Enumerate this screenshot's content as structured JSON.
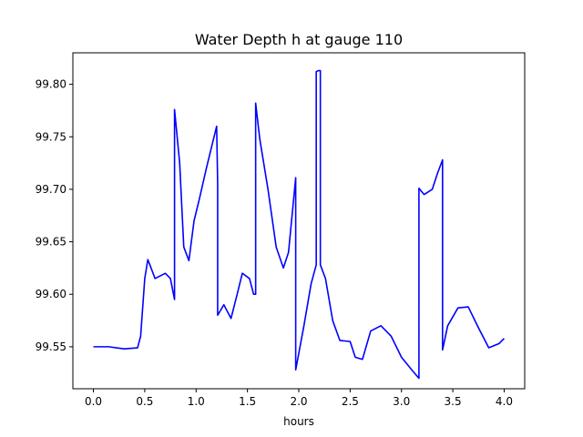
{
  "chart_data": {
    "type": "line",
    "title": "Water Depth h at gauge 110",
    "xlabel": "hours",
    "ylabel": "",
    "xlim": [
      -0.2,
      4.2
    ],
    "ylim": [
      99.51,
      99.83
    ],
    "grid": false,
    "legend": "none",
    "x_ticks": [
      0.0,
      0.5,
      1.0,
      1.5,
      2.0,
      2.5,
      3.0,
      3.5,
      4.0
    ],
    "x_tick_labels": [
      "0.0",
      "0.5",
      "1.0",
      "1.5",
      "2.0",
      "2.5",
      "3.0",
      "3.5",
      "4.0"
    ],
    "y_ticks": [
      99.55,
      99.6,
      99.65,
      99.7,
      99.75,
      99.8
    ],
    "y_tick_labels": [
      "99.55",
      "99.60",
      "99.65",
      "99.70",
      "99.75",
      "99.80"
    ],
    "series": [
      {
        "color": "#0000ff",
        "x": [
          0.0,
          0.15,
          0.3,
          0.43,
          0.46,
          0.5,
          0.53,
          0.55,
          0.6,
          0.7,
          0.75,
          0.79,
          0.79,
          0.84,
          0.88,
          0.93,
          0.98,
          1.03,
          1.1,
          1.2,
          1.21,
          1.21,
          1.27,
          1.34,
          1.4,
          1.45,
          1.52,
          1.56,
          1.58,
          1.58,
          1.62,
          1.7,
          1.78,
          1.85,
          1.9,
          1.97,
          1.97,
          2.05,
          2.12,
          2.17,
          2.17,
          2.19,
          2.21,
          2.21,
          2.26,
          2.33,
          2.4,
          2.5,
          2.55,
          2.62,
          2.7,
          2.8,
          2.9,
          3.0,
          3.1,
          3.17,
          3.17,
          3.22,
          3.3,
          3.35,
          3.4,
          3.4,
          3.45,
          3.55,
          3.65,
          3.75,
          3.85,
          3.95,
          4.0
        ],
        "y": [
          99.55,
          99.55,
          99.548,
          99.549,
          99.56,
          99.615,
          99.633,
          99.628,
          99.615,
          99.62,
          99.615,
          99.595,
          99.776,
          99.725,
          99.645,
          99.632,
          99.67,
          99.69,
          99.72,
          99.76,
          99.705,
          99.58,
          99.59,
          99.577,
          99.6,
          99.62,
          99.615,
          99.6,
          99.6,
          99.782,
          99.748,
          99.7,
          99.645,
          99.625,
          99.64,
          99.711,
          99.528,
          99.57,
          99.61,
          99.628,
          99.812,
          99.813,
          99.813,
          99.628,
          99.615,
          99.575,
          99.556,
          99.555,
          99.54,
          99.538,
          99.565,
          99.57,
          99.56,
          99.54,
          99.528,
          99.52,
          99.701,
          99.695,
          99.7,
          99.715,
          99.728,
          99.547,
          99.57,
          99.587,
          99.588,
          99.568,
          99.549,
          99.553,
          99.558
        ]
      }
    ]
  }
}
